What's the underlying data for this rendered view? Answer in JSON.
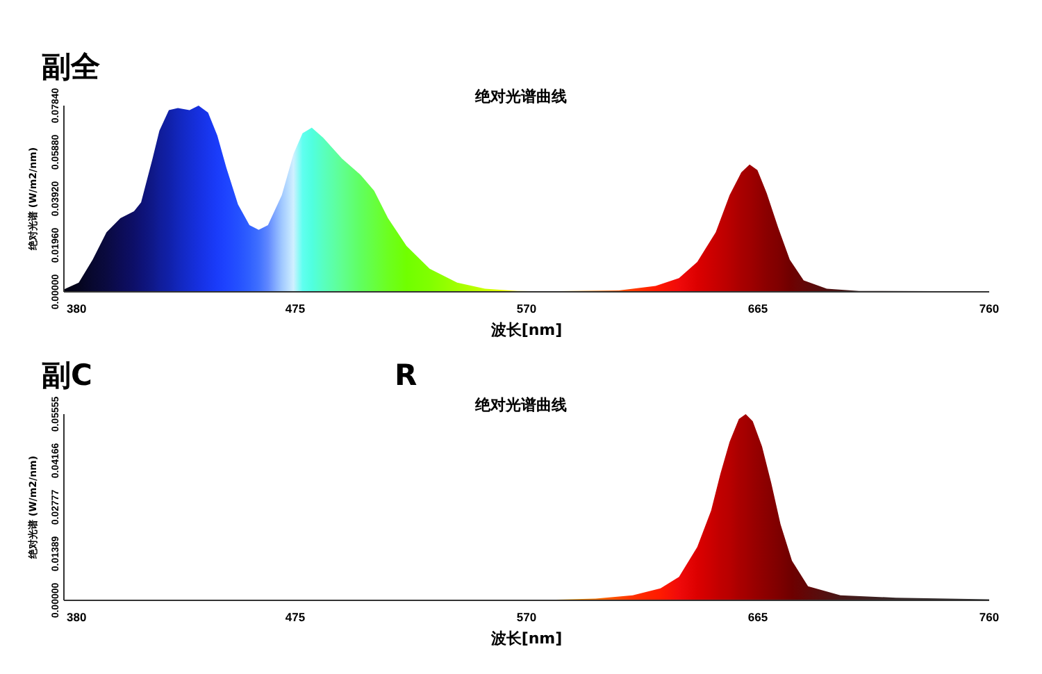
{
  "chart_data": [
    {
      "type": "area",
      "title": "绝对光谱曲线",
      "xlabel": "波长[nm]",
      "ylabel": "绝对光谱 (W/m2/nm)",
      "annotations": [
        "副全"
      ],
      "xlim": [
        380,
        760
      ],
      "xticks": [
        380,
        475,
        570,
        665,
        760
      ],
      "ylim": [
        0,
        0.0784
      ],
      "yticks": [
        {
          "value": 0,
          "label": "0.00000"
        },
        {
          "value": 0.0196,
          "label": "0.01960"
        },
        {
          "value": 0.0392,
          "label": "0.03920"
        },
        {
          "value": 0.0588,
          "label": "0.05880"
        },
        {
          "value": 0.0784,
          "label": "0.07840"
        }
      ],
      "x": [
        380,
        386.1,
        391.8,
        397.5,
        403.2,
        408.8,
        411.7,
        416.4,
        419.2,
        423.1,
        426.8,
        431.6,
        435.3,
        439.2,
        443,
        446.7,
        451.5,
        456.2,
        460,
        463.8,
        469.5,
        474.3,
        478,
        481.8,
        486.5,
        494.2,
        501.7,
        507.4,
        513.1,
        520.7,
        530.2,
        541.5,
        552.9,
        566.2,
        577.4,
        607.9,
        623,
        632.6,
        640.1,
        647.7,
        653.4,
        658.2,
        661.6,
        664.8,
        668.6,
        673.3,
        678.1,
        683.8,
        693.3,
        706.5,
        760
      ],
      "values": [
        0.001,
        0.0039,
        0.0135,
        0.0251,
        0.031,
        0.0339,
        0.0377,
        0.0561,
        0.0678,
        0.0765,
        0.0774,
        0.0765,
        0.0784,
        0.0755,
        0.0658,
        0.0523,
        0.0368,
        0.0281,
        0.0261,
        0.0281,
        0.0407,
        0.0581,
        0.0668,
        0.0691,
        0.0649,
        0.0561,
        0.0494,
        0.0426,
        0.031,
        0.0193,
        0.0097,
        0.0039,
        0.0013,
        0.0004,
        0.0002,
        0.0006,
        0.0025,
        0.0058,
        0.0126,
        0.0251,
        0.0407,
        0.0503,
        0.0536,
        0.0513,
        0.0416,
        0.0271,
        0.0135,
        0.0048,
        0.0013,
        0.0004,
        0.0002
      ],
      "colors": [
        "#000010",
        "#05051e",
        "#080830",
        "#0a0a40",
        "#0c0c55",
        "#0d0f68",
        "#0e1275",
        "#0f1888",
        "#101c98",
        "#1020a8",
        "#1226bb",
        "#142cd0",
        "#1630e0",
        "#1836ee",
        "#1a3cfa",
        "#1e44ff",
        "#2450ff",
        "#3060ff",
        "#4070ff",
        "#6088ff",
        "#a0c8ff",
        "#d0f0ff",
        "#60fff0",
        "#50ffe0",
        "#58ffc0",
        "#60ff90",
        "#60ff60",
        "#66ff40",
        "#6cff20",
        "#70ff00",
        "#80ff00",
        "#a0ff00",
        "#c8ff00",
        "#ffff00",
        "#ffcc00",
        "#ff5000",
        "#ff1a00",
        "#f00a0a",
        "#dc0000",
        "#c80000",
        "#b80000",
        "#a80000",
        "#a00000",
        "#960000",
        "#8a0000",
        "#800000",
        "#700000",
        "#640808",
        "#501010",
        "#402020",
        "#303030"
      ]
    },
    {
      "type": "area",
      "title": "绝对光谱曲线",
      "xlabel": "波长[nm]",
      "ylabel": "绝对光谱 (W/m2/nm)",
      "annotations": [
        "副C",
        "R"
      ],
      "xlim": [
        380,
        760
      ],
      "xticks": [
        380,
        475,
        570,
        665,
        760
      ],
      "ylim": [
        0,
        0.05555
      ],
      "yticks": [
        {
          "value": 0,
          "label": "0.00000"
        },
        {
          "value": 0.01389,
          "label": "0.01389"
        },
        {
          "value": 0.02777,
          "label": "0.02777"
        },
        {
          "value": 0.04166,
          "label": "0.04166"
        },
        {
          "value": 0.05555,
          "label": "0.05555"
        }
      ],
      "x": [
        380,
        450,
        520,
        570,
        598.4,
        613.6,
        625,
        632.6,
        640.1,
        645.8,
        649.6,
        653.4,
        657.2,
        660,
        662.9,
        666.7,
        670.5,
        674.3,
        679,
        685.6,
        698.9,
        721.7,
        760
      ],
      "values": [
        0,
        0,
        0,
        0,
        0.0005,
        0.0015,
        0.0036,
        0.007,
        0.0159,
        0.0268,
        0.0377,
        0.0473,
        0.0541,
        0.05555,
        0.0534,
        0.0459,
        0.035,
        0.0227,
        0.0118,
        0.0042,
        0.0015,
        0.0008,
        0.0003
      ],
      "colors": [
        "#000010",
        "#2450ff",
        "#70ff00",
        "#ffee00",
        "#ff7000",
        "#ff3000",
        "#ff1a00",
        "#f00a0a",
        "#dc0000",
        "#cc0000",
        "#c00000",
        "#b80000",
        "#aa0000",
        "#a40000",
        "#9a0000",
        "#900000",
        "#860000",
        "#7c0000",
        "#6e0000",
        "#600808",
        "#481818",
        "#382828",
        "#303030"
      ]
    }
  ]
}
